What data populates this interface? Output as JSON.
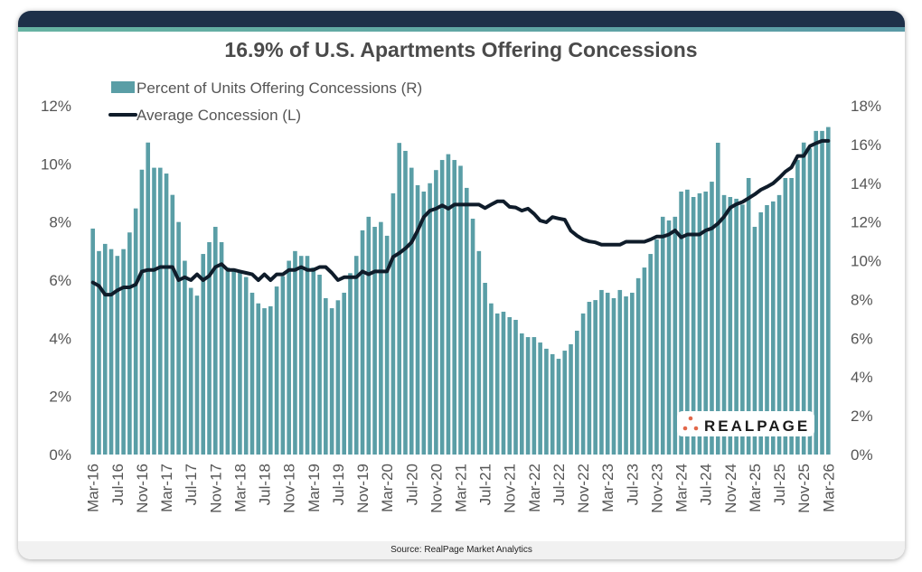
{
  "footer": {
    "source": "Source: RealPage Market Analytics"
  },
  "logo": {
    "text": "REALPAGE"
  },
  "colors": {
    "header": "#1e3049",
    "bar": "#5a9ea6",
    "line": "#0f1c2a",
    "logo_dots": "#e2674a"
  },
  "chart_data": {
    "type": "bar+line",
    "title": "16.9% of U.S. Apartments Offering Concessions",
    "x_start": "Mar-16",
    "x_end": "Mar-26",
    "frequency": "monthly",
    "x_tick_labels": [
      "Mar-16",
      "Jul-16",
      "Nov-16",
      "Mar-17",
      "Jul-17",
      "Nov-17",
      "Mar-18",
      "Jul-18",
      "Nov-18",
      "Mar-19",
      "Jul-19",
      "Nov-19",
      "Mar-20",
      "Jul-20",
      "Nov-20",
      "Mar-21",
      "Jul-21",
      "Nov-21",
      "Mar-22",
      "Jul-22",
      "Nov-22",
      "Mar-23",
      "Jul-23",
      "Nov-23",
      "Mar-24",
      "Jul-24",
      "Nov-24",
      "Mar-25",
      "Jul-25",
      "Nov-25",
      "Mar-26"
    ],
    "left_axis": {
      "ylim": [
        0,
        12
      ],
      "ticks": [
        "0%",
        "2%",
        "4%",
        "6%",
        "8%",
        "10%",
        "12%"
      ]
    },
    "right_axis": {
      "ylim": [
        0,
        18
      ],
      "ticks": [
        "0%",
        "2%",
        "4%",
        "6%",
        "8%",
        "10%",
        "12%",
        "14%",
        "16%",
        "18%"
      ]
    },
    "legend_placement": "top-left",
    "grid": false,
    "series": [
      {
        "name": "Percent of Units Offering Concessions (R)",
        "type": "bar",
        "axis": "right",
        "values": [
          11.66,
          10.5,
          10.87,
          10.6,
          10.25,
          10.6,
          11.46,
          12.7,
          14.7,
          16.1,
          14.8,
          14.8,
          14.5,
          13.4,
          12.0,
          10.0,
          8.6,
          8.2,
          10.35,
          10.96,
          11.75,
          10.96,
          9.65,
          9.5,
          9.5,
          9.16,
          8.35,
          7.8,
          7.55,
          7.65,
          8.67,
          9.2,
          10.0,
          10.5,
          10.25,
          10.25,
          9.65,
          9.28,
          8.07,
          7.55,
          7.96,
          8.35,
          9.36,
          10.25,
          11.57,
          12.27,
          11.75,
          12.0,
          11.29,
          13.48,
          16.08,
          15.67,
          14.8,
          13.9,
          13.57,
          14.0,
          14.68,
          15.2,
          15.5,
          15.2,
          14.9,
          13.76,
          12.17,
          10.5,
          8.86,
          7.8,
          7.28,
          7.37,
          7.09,
          6.95,
          6.25,
          6.06,
          6.06,
          5.78,
          5.46,
          5.18,
          4.94,
          5.36,
          5.69,
          6.39,
          7.28,
          7.88,
          7.97,
          8.49,
          8.35,
          8.07,
          8.49,
          8.16,
          8.35,
          9.1,
          9.65,
          10.35,
          11.1,
          12.27,
          12.08,
          12.27,
          13.57,
          13.67,
          13.29,
          13.48,
          13.57,
          14.08,
          16.09,
          13.39,
          13.29,
          13.2,
          12.9,
          14.27,
          11.75,
          12.5,
          12.87,
          13.06,
          13.39,
          14.27,
          14.27,
          15.2,
          16.1,
          15.8,
          16.7,
          16.7,
          16.9
        ]
      },
      {
        "name": "Average Concession (L)",
        "type": "line",
        "axis": "left",
        "values": [
          5.92,
          5.8,
          5.5,
          5.5,
          5.65,
          5.75,
          5.75,
          5.85,
          6.3,
          6.35,
          6.35,
          6.45,
          6.45,
          6.45,
          6.0,
          6.1,
          6.0,
          6.2,
          6.0,
          6.15,
          6.45,
          6.55,
          6.35,
          6.35,
          6.3,
          6.25,
          6.2,
          6.0,
          6.2,
          6.0,
          6.2,
          6.2,
          6.35,
          6.35,
          6.45,
          6.35,
          6.35,
          6.45,
          6.45,
          6.25,
          6.0,
          6.1,
          6.1,
          6.1,
          6.3,
          6.2,
          6.3,
          6.3,
          6.3,
          6.8,
          6.93,
          7.09,
          7.3,
          7.7,
          8.17,
          8.39,
          8.46,
          8.57,
          8.46,
          8.6,
          8.6,
          8.6,
          8.6,
          8.6,
          8.48,
          8.6,
          8.71,
          8.71,
          8.52,
          8.5,
          8.39,
          8.46,
          8.28,
          8.05,
          7.99,
          8.17,
          8.12,
          8.08,
          7.7,
          7.53,
          7.4,
          7.33,
          7.3,
          7.22,
          7.22,
          7.22,
          7.22,
          7.32,
          7.32,
          7.32,
          7.32,
          7.4,
          7.5,
          7.5,
          7.57,
          7.71,
          7.47,
          7.57,
          7.57,
          7.57,
          7.71,
          7.78,
          7.95,
          8.18,
          8.49,
          8.61,
          8.69,
          8.82,
          8.95,
          9.11,
          9.21,
          9.33,
          9.52,
          9.73,
          9.88,
          10.27,
          10.27,
          10.61,
          10.71,
          10.79,
          10.79
        ]
      }
    ]
  }
}
